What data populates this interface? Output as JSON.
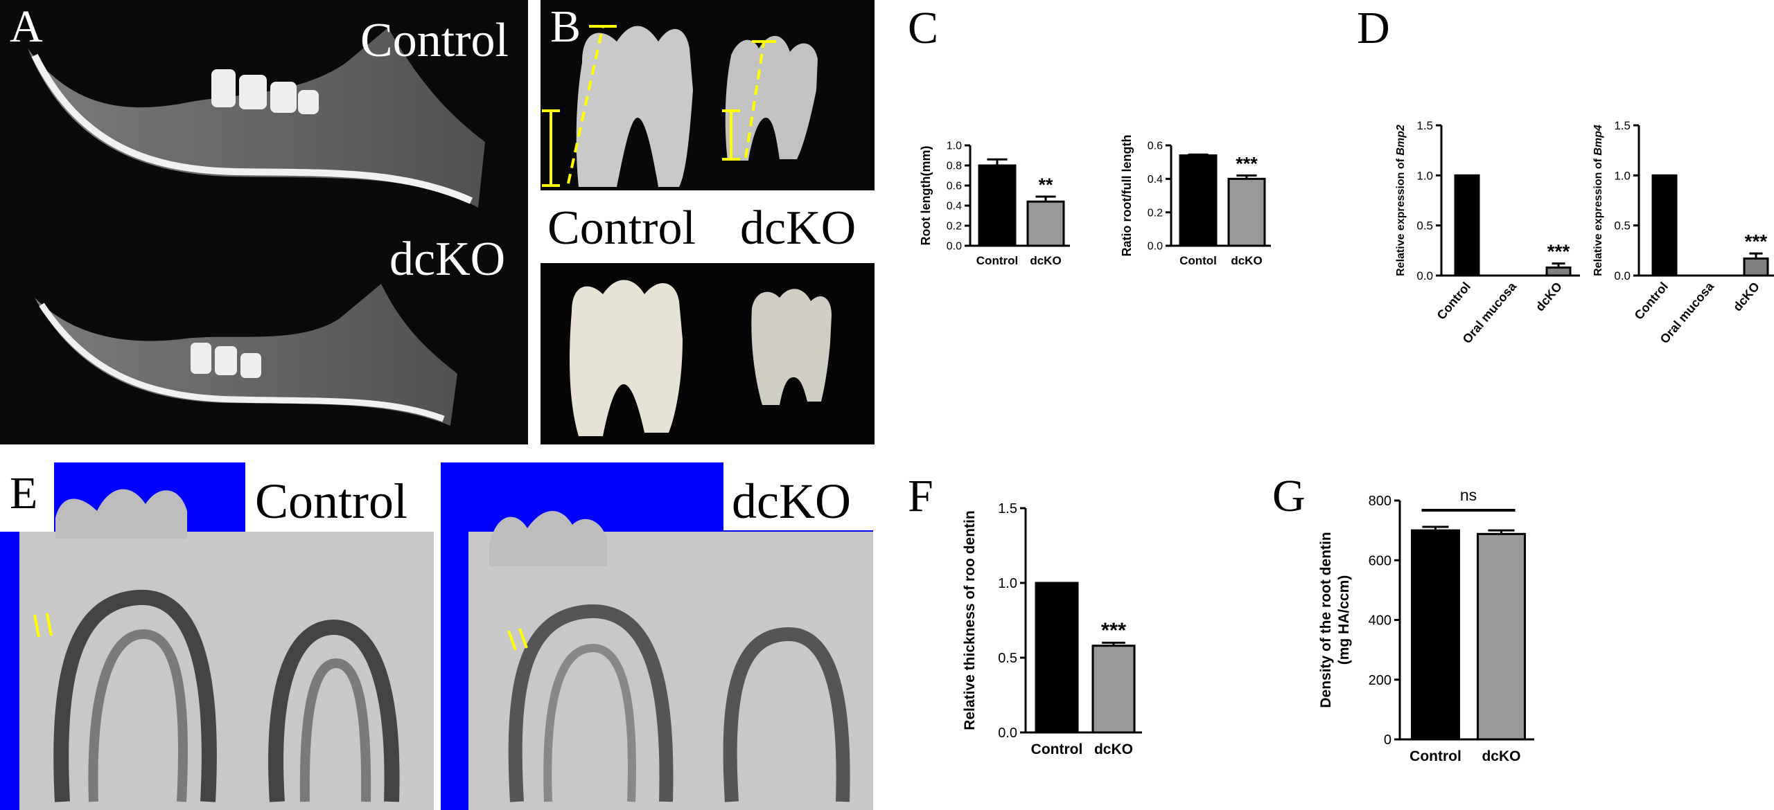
{
  "panels": {
    "A": {
      "letter": "A",
      "label_top": "Control",
      "label_bottom": "dcKO"
    },
    "B": {
      "letter": "B",
      "label_left": "Control",
      "label_right": "dcKO"
    },
    "C": {
      "letter": "C"
    },
    "D": {
      "letter": "D"
    },
    "E": {
      "letter": "E",
      "label_left": "Control",
      "label_right": "dcKO"
    },
    "F": {
      "letter": "F"
    },
    "G": {
      "letter": "G"
    }
  },
  "chart_data": [
    {
      "id": "C1",
      "type": "bar",
      "categories": [
        "Control",
        "dcKO"
      ],
      "values": [
        0.8,
        0.44
      ],
      "errors": [
        0.06,
        0.05
      ],
      "ylabel": "Root length(mm)",
      "ylim": [
        0,
        1.0
      ],
      "yticks": [
        "0.0",
        "0.2",
        "0.4",
        "0.6",
        "0.8",
        "1.0"
      ],
      "significance": [
        "",
        "**"
      ],
      "colors": [
        "#000000",
        "#999999"
      ]
    },
    {
      "id": "C2",
      "type": "bar",
      "categories": [
        "Contol",
        "dcKO"
      ],
      "values": [
        0.54,
        0.4
      ],
      "errors": [
        0.005,
        0.02
      ],
      "ylabel": "Ratio root/full length",
      "ylim": [
        0,
        0.6
      ],
      "yticks": [
        "0.0",
        "0.2",
        "0.4",
        "0.6"
      ],
      "significance": [
        "",
        "***"
      ],
      "colors": [
        "#000000",
        "#999999"
      ]
    },
    {
      "id": "D1",
      "type": "bar",
      "categories": [
        "Control",
        "Oral mucosa",
        "dcKO"
      ],
      "values": [
        1.0,
        0.0,
        0.08
      ],
      "errors": [
        0,
        0,
        0.04
      ],
      "ylabel": "Relative expression of ",
      "ylabel_gene": "Bmp2",
      "ylim": [
        0,
        1.5
      ],
      "yticks": [
        "0.0",
        "0.5",
        "1.0",
        "1.5"
      ],
      "significance": [
        "",
        "",
        "***"
      ],
      "colors": [
        "#000000",
        "#000000",
        "#808080"
      ]
    },
    {
      "id": "D2",
      "type": "bar",
      "categories": [
        "Control",
        "Oral mucosa",
        "dcKO"
      ],
      "values": [
        1.0,
        0.0,
        0.17
      ],
      "errors": [
        0,
        0,
        0.05
      ],
      "ylabel": "Relative expression of ",
      "ylabel_gene": "Bmp4",
      "ylim": [
        0,
        1.5
      ],
      "yticks": [
        "0.0",
        "0.5",
        "1.0",
        "1.5"
      ],
      "significance": [
        "",
        "",
        "***"
      ],
      "colors": [
        "#000000",
        "#000000",
        "#808080"
      ]
    },
    {
      "id": "F",
      "type": "bar",
      "categories": [
        "Control",
        "dcKO"
      ],
      "values": [
        1.0,
        0.58
      ],
      "errors": [
        0,
        0.02
      ],
      "ylabel": "Relative thickness of roo dentin",
      "ylim": [
        0,
        1.5
      ],
      "yticks": [
        "0.0",
        "0.5",
        "1.0",
        "1.5"
      ],
      "significance": [
        "",
        "***"
      ],
      "colors": [
        "#000000",
        "#999999"
      ]
    },
    {
      "id": "G",
      "type": "bar",
      "categories": [
        "Control",
        "dcKO"
      ],
      "values": [
        700,
        688
      ],
      "errors": [
        12,
        12
      ],
      "ylabel": "Density of the root dentin",
      "ylabel2": "(mg HA/ccm)",
      "ylim": [
        0,
        800
      ],
      "yticks": [
        "0",
        "200",
        "400",
        "600",
        "800"
      ],
      "significance_bracket": "ns",
      "colors": [
        "#000000",
        "#999999"
      ]
    }
  ]
}
